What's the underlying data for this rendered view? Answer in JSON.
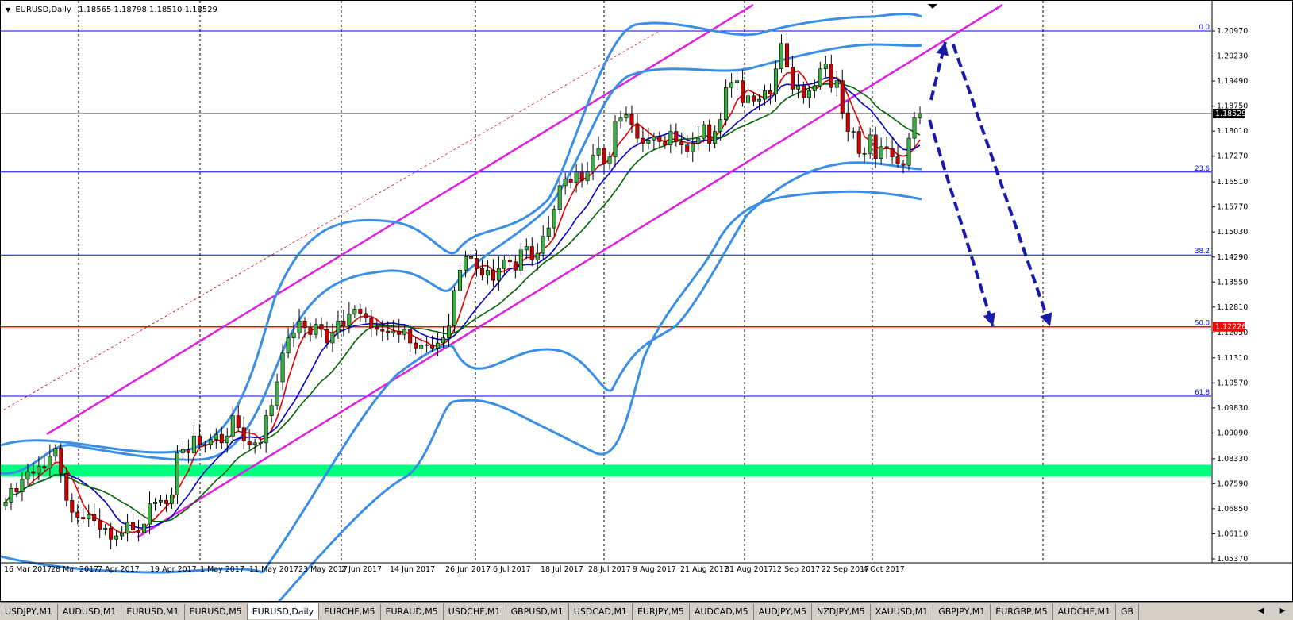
{
  "chart_header": {
    "symbol": "EURUSD,Daily",
    "ohlc": "1.18565 1.18798 1.18510 1.18529"
  },
  "tabs": [
    {
      "label": "USDJPY,M1",
      "active": false
    },
    {
      "label": "AUDUSD,M1",
      "active": false
    },
    {
      "label": "EURUSD,M1",
      "active": false
    },
    {
      "label": "EURUSD,M5",
      "active": false
    },
    {
      "label": "EURUSD,Daily",
      "active": true
    },
    {
      "label": "EURCHF,M5",
      "active": false
    },
    {
      "label": "EURAUD,M5",
      "active": false
    },
    {
      "label": "USDCHF,M1",
      "active": false
    },
    {
      "label": "GBPUSD,M1",
      "active": false
    },
    {
      "label": "USDCAD,M1",
      "active": false
    },
    {
      "label": "EURJPY,M5",
      "active": false
    },
    {
      "label": "AUDCAD,M5",
      "active": false
    },
    {
      "label": "AUDJPY,M5",
      "active": false
    },
    {
      "label": "NZDJPY,M5",
      "active": false
    },
    {
      "label": "XAUUSD,M1",
      "active": false
    },
    {
      "label": "GBPJPY,M1",
      "active": false
    },
    {
      "label": "EURGBP,M5",
      "active": false
    },
    {
      "label": "AUDCHF,M1",
      "active": false
    },
    {
      "label": "GB",
      "active": false
    }
  ],
  "colors": {
    "bull": "#3cb043",
    "bear": "#cc0000",
    "bollinger": "#3a8ee6",
    "channel": "#e020e0",
    "fib_line": "#0000ff",
    "fib_50": "#ff0000",
    "zone": "#00ff7f",
    "arrow": "#1a1aaa",
    "ma_red": "#e00000",
    "ma_blue": "#0000c8",
    "ma_green": "#006400"
  },
  "chart_data": {
    "type": "candlestick",
    "symbol": "EURUSD",
    "timeframe": "Daily",
    "ylim": [
      1.0537,
      1.2128
    ],
    "price_scale_ticks": [
      "1.20970",
      "1.20230",
      "1.19490",
      "1.18750",
      "1.18010",
      "1.17270",
      "1.16510",
      "1.15770",
      "1.15030",
      "1.14290",
      "1.13550",
      "1.12810",
      "1.12050",
      "1.11310",
      "1.10570",
      "1.09830",
      "1.09090",
      "1.08330",
      "1.07590",
      "1.06850",
      "1.06110",
      "1.05370"
    ],
    "date_ticks": [
      "16 Mar 2017",
      "28 Mar 2017",
      "7 Apr 2017",
      "19 Apr 2017",
      "1 May 2017",
      "11 May 2017",
      "23 May 2017",
      "2 Jun 2017",
      "14 Jun 2017",
      "26 Jun 2017",
      "6 Jul 2017",
      "18 Jul 2017",
      "28 Jul 2017",
      "9 Aug 2017",
      "21 Aug 2017",
      "31 Aug 2017",
      "12 Sep 2017",
      "22 Sep 2017",
      "4 Oct 2017"
    ],
    "current_price": "1.18529",
    "fib_50_price": "1.12226",
    "fibonacci_levels": [
      {
        "label": "0.0",
        "price": 1.2097
      },
      {
        "label": "23.6",
        "price": 1.168
      },
      {
        "label": "38.2",
        "price": 1.1435
      },
      {
        "label": "50.0",
        "price": 1.12226
      },
      {
        "label": "61.8",
        "price": 1.1018
      }
    ],
    "support_zone": [
      1.078,
      1.0815
    ],
    "closes": [
      1.0705,
      1.0745,
      1.0735,
      1.0772,
      1.0795,
      1.079,
      1.081,
      1.0805,
      1.084,
      1.0864,
      1.079,
      1.071,
      1.0675,
      1.066,
      1.0655,
      1.0668,
      1.065,
      1.0625,
      1.0628,
      1.0595,
      1.0605,
      1.0612,
      1.0645,
      1.0622,
      1.0615,
      1.064,
      1.07,
      1.0705,
      1.071,
      1.07,
      1.0726,
      1.085,
      1.086,
      1.085,
      1.09,
      1.0875,
      1.0875,
      1.089,
      1.0905,
      1.088,
      1.09,
      1.096,
      1.0925,
      1.0885,
      1.0875,
      1.088,
      1.088,
      1.096,
      1.099,
      1.106,
      1.1145,
      1.119,
      1.1205,
      1.124,
      1.122,
      1.12,
      1.123,
      1.1215,
      1.1175,
      1.1205,
      1.124,
      1.1225,
      1.126,
      1.1275,
      1.1262,
      1.125,
      1.122,
      1.1215,
      1.121,
      1.1205,
      1.121,
      1.12,
      1.1215,
      1.1175,
      1.116,
      1.1168,
      1.117,
      1.116,
      1.1175,
      1.119,
      1.1225,
      1.133,
      1.139,
      1.143,
      1.1425,
      1.1395,
      1.1375,
      1.139,
      1.136,
      1.1395,
      1.142,
      1.1415,
      1.139,
      1.145,
      1.146,
      1.142,
      1.144,
      1.149,
      1.1515,
      1.157,
      1.164,
      1.166,
      1.165,
      1.168,
      1.1655,
      1.168,
      1.173,
      1.175,
      1.1705,
      1.1725,
      1.183,
      1.184,
      1.185,
      1.182,
      1.178,
      1.1765,
      1.1775,
      1.1785,
      1.177,
      1.176,
      1.18,
      1.177,
      1.176,
      1.174,
      1.1765,
      1.178,
      1.182,
      1.1765,
      1.18,
      1.1835,
      1.193,
      1.1945,
      1.195,
      1.1885,
      1.1905,
      1.189,
      1.1895,
      1.192,
      1.191,
      1.1985,
      1.206,
      1.199,
      1.1925,
      1.1935,
      1.19,
      1.192,
      1.1935,
      1.1985,
      1.2,
      1.193,
      1.195,
      1.1855,
      1.18,
      1.18,
      1.1735,
      1.1735,
      1.179,
      1.172,
      1.1755,
      1.175,
      1.1725,
      1.1705,
      1.17,
      1.178,
      1.184,
      1.18529
    ]
  }
}
